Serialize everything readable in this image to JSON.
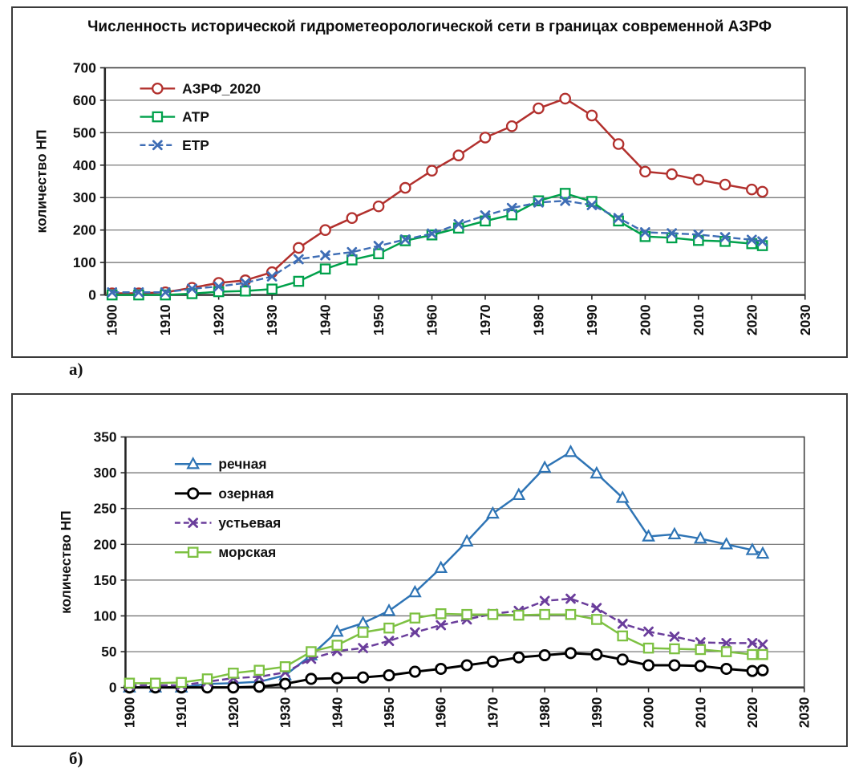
{
  "labels": {
    "a": "а)",
    "b": "б)"
  },
  "axis": {
    "ylabel": "количество НП"
  },
  "chart_data": [
    {
      "type": "line",
      "title": "Численность исторической гидрометеорологической сети в границах современной АЗРФ",
      "xlabel": "",
      "ylabel": "количество НП",
      "xlim": [
        1900,
        2030
      ],
      "xtick_step": 10,
      "ylim": [
        0,
        700
      ],
      "ytick_step": 100,
      "grid": "horizontal",
      "legend_position": "top-left",
      "x": [
        1900,
        1905,
        1910,
        1915,
        1920,
        1925,
        1930,
        1935,
        1940,
        1945,
        1950,
        1955,
        1960,
        1965,
        1970,
        1975,
        1980,
        1985,
        1990,
        1995,
        2000,
        2005,
        2010,
        2015,
        2020,
        2022
      ],
      "series": [
        {
          "name": "АЗРФ_2020",
          "color": "#b2302d",
          "marker": "circle",
          "dash": "solid",
          "line_width": 2.5,
          "values": [
            5,
            5,
            8,
            22,
            37,
            45,
            70,
            145,
            200,
            237,
            273,
            330,
            383,
            430,
            485,
            520,
            575,
            605,
            553,
            465,
            380,
            372,
            355,
            340,
            325,
            318
          ]
        },
        {
          "name": "АТР",
          "color": "#00a14b",
          "marker": "square",
          "dash": "solid",
          "line_width": 2.5,
          "values": [
            0,
            0,
            0,
            4,
            10,
            12,
            18,
            42,
            80,
            108,
            127,
            167,
            185,
            206,
            228,
            247,
            290,
            313,
            288,
            228,
            180,
            176,
            168,
            165,
            158,
            152
          ]
        },
        {
          "name": "ЕТР",
          "color": "#3e6db5",
          "marker": "x",
          "dash": "dashed",
          "line_width": 2.4,
          "values": [
            8,
            8,
            8,
            19,
            26,
            37,
            57,
            110,
            122,
            132,
            151,
            171,
            189,
            218,
            245,
            268,
            285,
            290,
            277,
            237,
            193,
            190,
            186,
            178,
            170,
            165
          ]
        }
      ]
    },
    {
      "type": "line",
      "title": "",
      "xlabel": "",
      "ylabel": "количество НП",
      "xlim": [
        1900,
        2030
      ],
      "xtick_step": 10,
      "ylim": [
        0,
        350
      ],
      "ytick_step": 50,
      "grid": "horizontal",
      "legend_position": "top-left",
      "x": [
        1900,
        1905,
        1910,
        1915,
        1920,
        1925,
        1930,
        1935,
        1940,
        1945,
        1950,
        1955,
        1960,
        1965,
        1970,
        1975,
        1980,
        1985,
        1990,
        1995,
        2000,
        2005,
        2010,
        2015,
        2020,
        2022
      ],
      "series": [
        {
          "name": "речная",
          "color": "#2e74b5",
          "marker": "triangle",
          "dash": "solid",
          "line_width": 2.5,
          "values": [
            0,
            0,
            0,
            5,
            6,
            8,
            17,
            45,
            78,
            90,
            107,
            133,
            167,
            204,
            243,
            269,
            307,
            329,
            299,
            265,
            211,
            214,
            208,
            200,
            192,
            187
          ]
        },
        {
          "name": "озерная",
          "color": "#000000",
          "marker": "circle",
          "dash": "solid",
          "line_width": 3,
          "values": [
            0,
            0,
            0,
            0,
            0,
            1,
            5,
            12,
            13,
            14,
            17,
            22,
            26,
            31,
            36,
            42,
            45,
            48,
            46,
            39,
            31,
            31,
            30,
            26,
            23,
            24
          ]
        },
        {
          "name": "устьевая",
          "color": "#6a3d9b",
          "marker": "x",
          "dash": "dashed",
          "line_width": 2.5,
          "values": [
            3,
            3,
            3,
            8,
            13,
            15,
            21,
            40,
            51,
            55,
            65,
            77,
            87,
            95,
            103,
            107,
            121,
            124,
            111,
            89,
            78,
            71,
            63,
            62,
            62,
            60
          ]
        },
        {
          "name": "морская",
          "color": "#7dc142",
          "marker": "square",
          "dash": "solid",
          "line_width": 2.5,
          "values": [
            6,
            6,
            7,
            12,
            20,
            24,
            29,
            50,
            59,
            77,
            83,
            97,
            103,
            102,
            102,
            101,
            102,
            102,
            95,
            72,
            55,
            54,
            53,
            50,
            46,
            46
          ]
        }
      ]
    }
  ]
}
